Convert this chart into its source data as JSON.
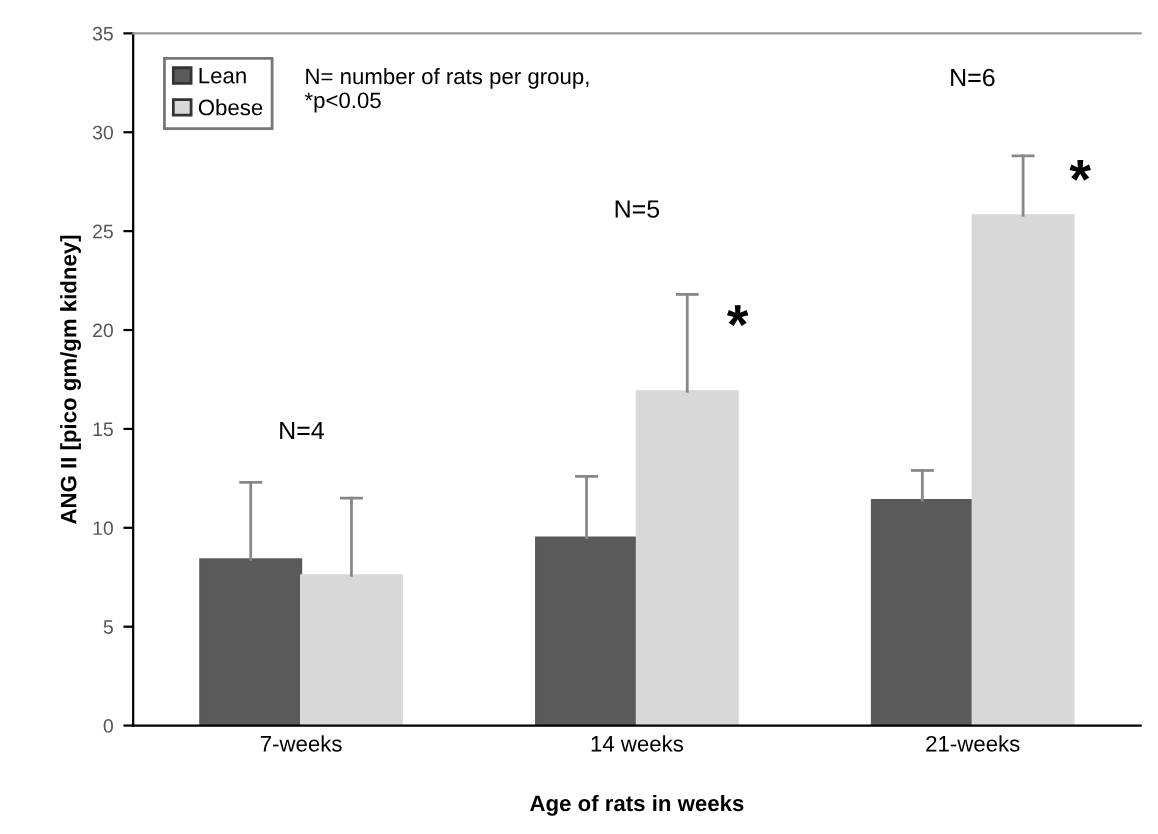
{
  "chart_data": {
    "type": "bar",
    "xlabel": "Age of rats in weeks",
    "ylabel": "ANG II [pico gm/gm kidney]",
    "categories": [
      "7-weeks",
      "14 weeks",
      "21-weeks"
    ],
    "series": [
      {
        "name": "Lean",
        "color": "#5a5a5a",
        "values": [
          8.4,
          9.5,
          11.4
        ],
        "errors": [
          [
            8.4,
            12.3
          ],
          [
            9.5,
            12.6
          ],
          [
            11.4,
            12.9
          ]
        ]
      },
      {
        "name": "Obese",
        "color": "#d8d8d8",
        "values": [
          7.6,
          16.9,
          25.8
        ],
        "errors": [
          [
            7.6,
            11.5
          ],
          [
            16.9,
            21.8
          ],
          [
            25.8,
            28.8
          ]
        ]
      }
    ],
    "ylim": [
      0,
      35
    ],
    "yticks": [
      0,
      5,
      10,
      15,
      20,
      25,
      30,
      35
    ],
    "grid": false,
    "legend": "top left",
    "annotations": [
      "N= number of rats per group,\n*p<0.05",
      "N=4",
      "N=5",
      "N=6",
      "*",
      "*"
    ]
  }
}
